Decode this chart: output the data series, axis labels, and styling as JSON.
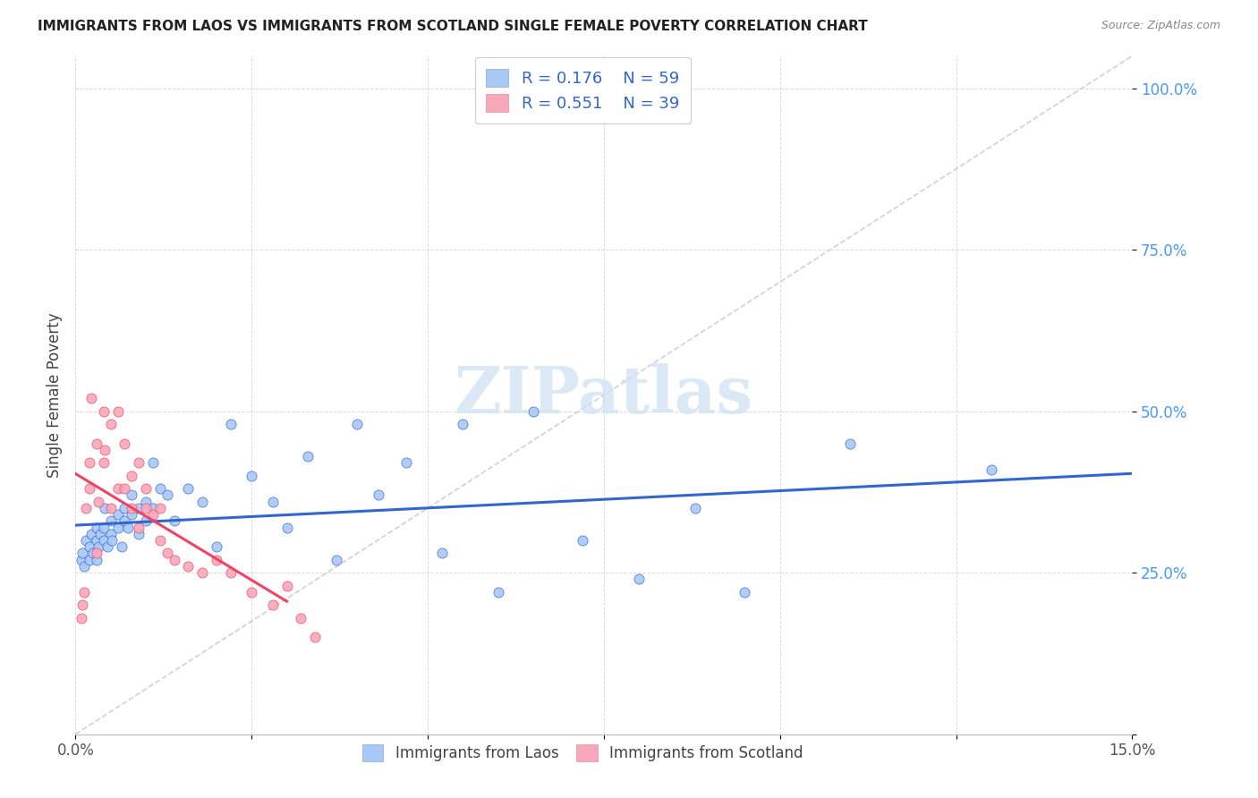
{
  "title": "IMMIGRANTS FROM LAOS VS IMMIGRANTS FROM SCOTLAND SINGLE FEMALE POVERTY CORRELATION CHART",
  "source": "Source: ZipAtlas.com",
  "ylabel": "Single Female Poverty",
  "x_min": 0.0,
  "x_max": 0.15,
  "y_min": 0.0,
  "y_max": 1.05,
  "laos_R": 0.176,
  "laos_N": 59,
  "scotland_R": 0.551,
  "scotland_N": 39,
  "laos_color": "#a8c8f8",
  "scotland_color": "#f8a8b8",
  "trend_laos_color": "#3366cc",
  "trend_scotland_color": "#ee4466",
  "dashed_color": "#cccccc",
  "watermark_color": "#cce0f5",
  "laos_x": [
    0.0008,
    0.001,
    0.0012,
    0.0015,
    0.002,
    0.002,
    0.0022,
    0.0025,
    0.003,
    0.003,
    0.003,
    0.0032,
    0.0035,
    0.004,
    0.004,
    0.0042,
    0.0045,
    0.005,
    0.005,
    0.0052,
    0.006,
    0.006,
    0.0065,
    0.007,
    0.007,
    0.0075,
    0.008,
    0.008,
    0.009,
    0.009,
    0.01,
    0.01,
    0.011,
    0.011,
    0.012,
    0.013,
    0.014,
    0.016,
    0.018,
    0.02,
    0.022,
    0.025,
    0.028,
    0.03,
    0.033,
    0.037,
    0.04,
    0.043,
    0.047,
    0.052,
    0.055,
    0.06,
    0.065,
    0.072,
    0.08,
    0.088,
    0.095,
    0.11,
    0.13
  ],
  "laos_y": [
    0.27,
    0.28,
    0.26,
    0.3,
    0.27,
    0.29,
    0.31,
    0.28,
    0.27,
    0.3,
    0.32,
    0.29,
    0.31,
    0.3,
    0.32,
    0.35,
    0.29,
    0.31,
    0.33,
    0.3,
    0.32,
    0.34,
    0.29,
    0.33,
    0.35,
    0.32,
    0.34,
    0.37,
    0.31,
    0.35,
    0.33,
    0.36,
    0.35,
    0.42,
    0.38,
    0.37,
    0.33,
    0.38,
    0.36,
    0.29,
    0.48,
    0.4,
    0.36,
    0.32,
    0.43,
    0.27,
    0.48,
    0.37,
    0.42,
    0.28,
    0.48,
    0.22,
    0.5,
    0.3,
    0.24,
    0.35,
    0.22,
    0.45,
    0.41
  ],
  "scotland_x": [
    0.0008,
    0.001,
    0.0012,
    0.0015,
    0.002,
    0.002,
    0.0022,
    0.003,
    0.003,
    0.0032,
    0.004,
    0.004,
    0.0042,
    0.005,
    0.005,
    0.006,
    0.006,
    0.007,
    0.007,
    0.008,
    0.008,
    0.009,
    0.009,
    0.01,
    0.01,
    0.011,
    0.012,
    0.012,
    0.013,
    0.014,
    0.016,
    0.018,
    0.02,
    0.022,
    0.025,
    0.028,
    0.03,
    0.032,
    0.034
  ],
  "scotland_y": [
    0.18,
    0.2,
    0.22,
    0.35,
    0.38,
    0.42,
    0.52,
    0.28,
    0.45,
    0.36,
    0.42,
    0.5,
    0.44,
    0.35,
    0.48,
    0.38,
    0.5,
    0.38,
    0.45,
    0.35,
    0.4,
    0.32,
    0.42,
    0.35,
    0.38,
    0.34,
    0.3,
    0.35,
    0.28,
    0.27,
    0.26,
    0.25,
    0.27,
    0.25,
    0.22,
    0.2,
    0.23,
    0.18,
    0.15
  ],
  "x_ticks": [
    0.0,
    0.025,
    0.05,
    0.075,
    0.1,
    0.125,
    0.15
  ],
  "x_tick_labels": [
    "0.0%",
    "",
    "",
    "",
    "",
    "",
    "15.0%"
  ],
  "y_ticks": [
    0.0,
    0.25,
    0.5,
    0.75,
    1.0
  ],
  "y_tick_labels": [
    "",
    "25.0%",
    "50.0%",
    "75.0%",
    "100.0%"
  ]
}
